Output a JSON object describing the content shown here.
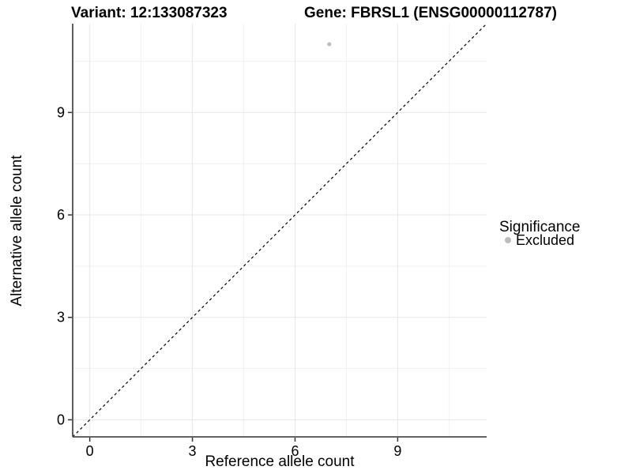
{
  "chart_data": {
    "type": "scatter",
    "title_left": "Variant: 12:133087323",
    "title_right": "Gene: FBRSL1 (ENSG00000112787)",
    "xlabel": "Reference allele count",
    "ylabel": "Alternative allele count",
    "xlim": [
      -0.5,
      11.6
    ],
    "ylim": [
      -0.5,
      11.6
    ],
    "xticks": [
      0,
      3,
      6,
      9
    ],
    "yticks": [
      0,
      3,
      6,
      9
    ],
    "xminor": [
      1.5,
      4.5,
      7.5,
      10.5
    ],
    "yminor": [
      1.5,
      4.5,
      7.5,
      10.5
    ],
    "grid": "major+minor",
    "legend_title": "Significance",
    "legend_position": "right",
    "series": [
      {
        "name": "Excluded",
        "color": "#bdbdbd",
        "marker": "circle",
        "points": [
          {
            "x": 7,
            "y": 11
          }
        ]
      }
    ],
    "reference_line": {
      "kind": "identity y=x",
      "style": "dashed",
      "color": "#000000"
    }
  },
  "style": {
    "background": "#ffffff",
    "grid_major_color": "#e7e7e7",
    "grid_minor_color": "#f1f1f1",
    "axis_line_color": "#4d4d4d",
    "tick_mark_color": "#333333",
    "tick_label_color": "#1a1a1a",
    "title_color": "#000000",
    "point_radius": 2.6,
    "legend_key_radius": 4
  }
}
